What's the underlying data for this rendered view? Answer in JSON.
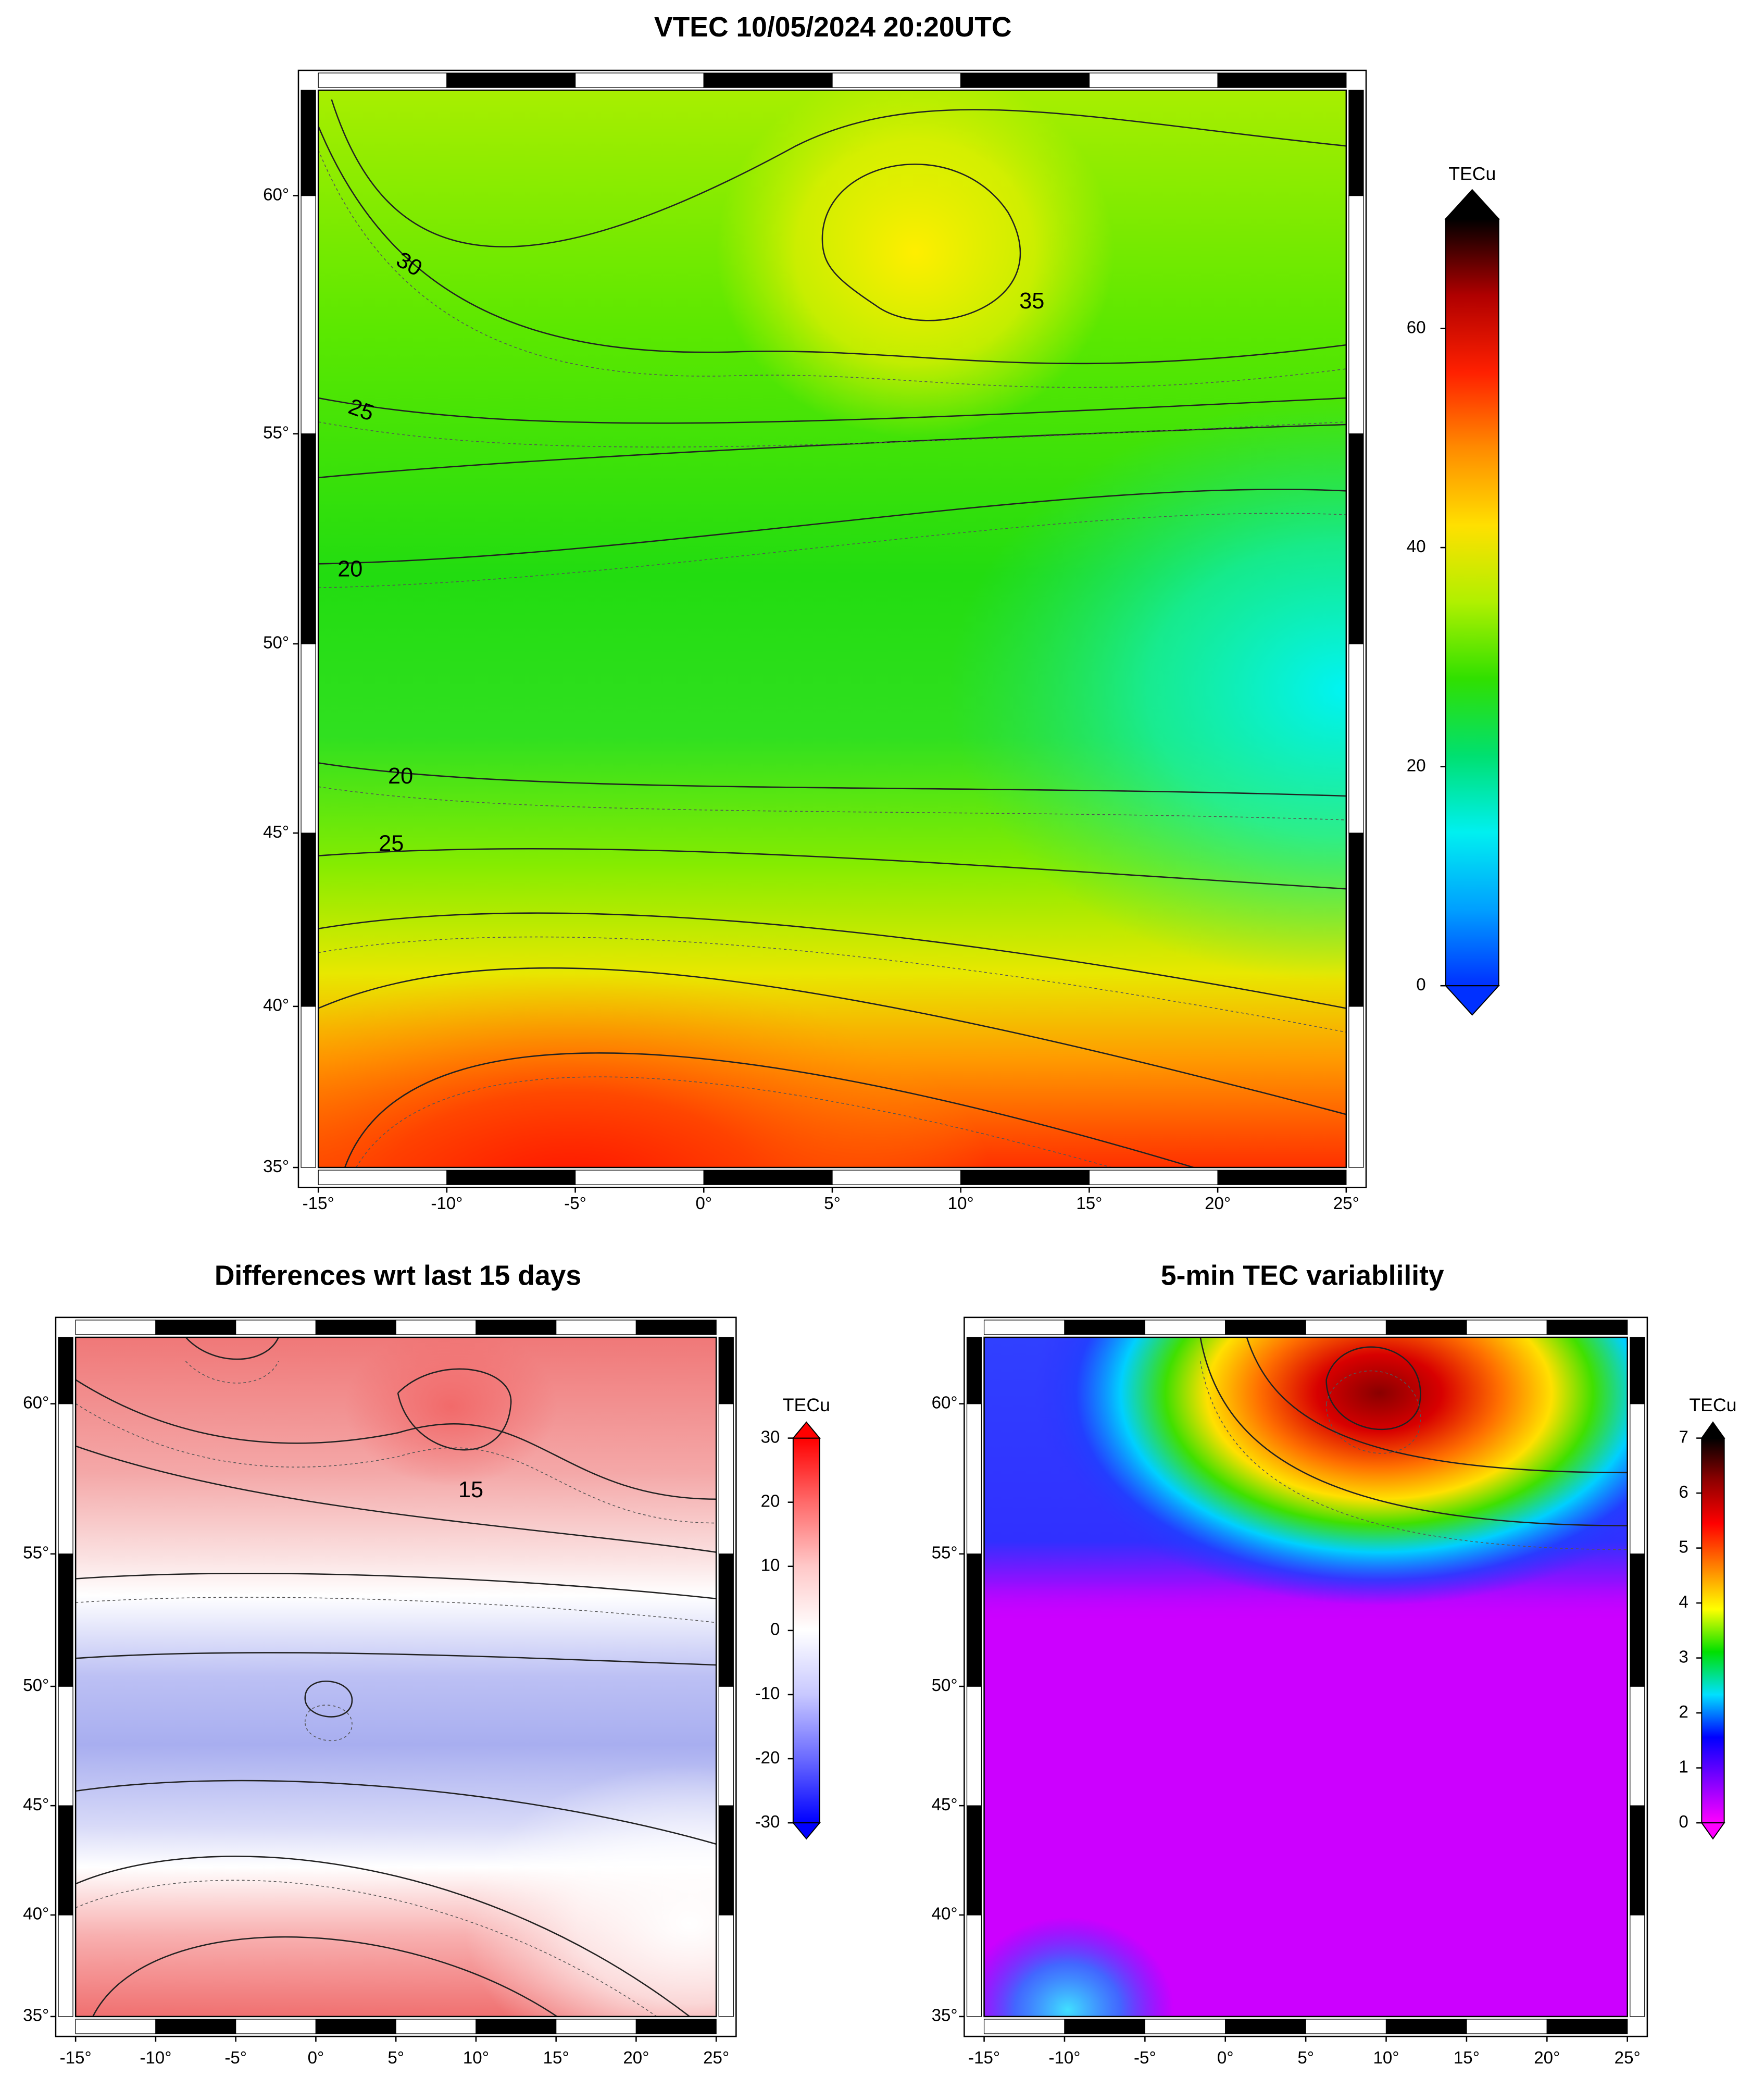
{
  "panels": [
    {
      "title": "VTEC 10/05/2024 20:20UTC",
      "lonlim": [
        -15,
        25
      ],
      "latlim": [
        35,
        62
      ],
      "lonticks": [
        {
          "value": -15,
          "label": "-15°"
        },
        {
          "value": -10,
          "label": "-10°"
        },
        {
          "value": -5,
          "label": "-5°"
        },
        {
          "value": 0,
          "label": "0°"
        },
        {
          "value": 5,
          "label": "5°"
        },
        {
          "value": 10,
          "label": "10°"
        },
        {
          "value": 15,
          "label": "15°"
        },
        {
          "value": 20,
          "label": "20°"
        },
        {
          "value": 25,
          "label": "25°"
        }
      ],
      "latticks": [
        {
          "value": 35,
          "label": "35°"
        },
        {
          "value": 40,
          "label": "40°"
        },
        {
          "value": 45,
          "label": "45°"
        },
        {
          "value": 50,
          "label": "50°"
        },
        {
          "value": 55,
          "label": "55°"
        },
        {
          "value": 60,
          "label": "60°"
        }
      ],
      "colorbar": {
        "label": "TECu",
        "range": [
          0,
          70
        ],
        "ticks": [
          0,
          20,
          40,
          60
        ],
        "colors": [
          "#0030ff",
          "#00a0ff",
          "#00f0f0",
          "#00e070",
          "#30e000",
          "#b0f000",
          "#ffe000",
          "#ff8c00",
          "#ff2000",
          "#b00000",
          "#000000"
        ]
      },
      "contour_labels": [
        "30",
        "35",
        "25",
        "20",
        "20",
        "25"
      ]
    },
    {
      "title": "Differences wrt last 15 days",
      "lonlim": [
        -15,
        25
      ],
      "latlim": [
        35,
        62
      ],
      "lonticks": [
        {
          "value": -15,
          "label": "-15°"
        },
        {
          "value": -10,
          "label": "-10°"
        },
        {
          "value": -5,
          "label": "-5°"
        },
        {
          "value": 0,
          "label": "0°"
        },
        {
          "value": 5,
          "label": "5°"
        },
        {
          "value": 10,
          "label": "10°"
        },
        {
          "value": 15,
          "label": "15°"
        },
        {
          "value": 20,
          "label": "20°"
        },
        {
          "value": 25,
          "label": "25°"
        }
      ],
      "latticks": [
        {
          "value": 35,
          "label": "35°"
        },
        {
          "value": 40,
          "label": "40°"
        },
        {
          "value": 45,
          "label": "45°"
        },
        {
          "value": 50,
          "label": "50°"
        },
        {
          "value": 55,
          "label": "55°"
        },
        {
          "value": 60,
          "label": "60°"
        }
      ],
      "colorbar": {
        "label": "TECu",
        "range": [
          -30,
          30
        ],
        "ticks": [
          -30,
          -20,
          -10,
          0,
          10,
          20,
          30
        ],
        "colors": [
          "#0000ff",
          "#6a6aff",
          "#c8c8ff",
          "#ffffff",
          "#ffc8c8",
          "#ff6a6a",
          "#ff0000"
        ]
      },
      "contour_labels": [
        "15"
      ]
    },
    {
      "title": "5-min TEC variablility",
      "lonlim": [
        -15,
        25
      ],
      "latlim": [
        35,
        62
      ],
      "lonticks": [
        {
          "value": -15,
          "label": "-15°"
        },
        {
          "value": -10,
          "label": "-10°"
        },
        {
          "value": -5,
          "label": "-5°"
        },
        {
          "value": 0,
          "label": "0°"
        },
        {
          "value": 5,
          "label": "5°"
        },
        {
          "value": 10,
          "label": "10°"
        },
        {
          "value": 15,
          "label": "15°"
        },
        {
          "value": 20,
          "label": "20°"
        },
        {
          "value": 25,
          "label": "25°"
        }
      ],
      "latticks": [
        {
          "value": 35,
          "label": "35°"
        },
        {
          "value": 40,
          "label": "40°"
        },
        {
          "value": 45,
          "label": "45°"
        },
        {
          "value": 50,
          "label": "50°"
        },
        {
          "value": 55,
          "label": "55°"
        },
        {
          "value": 60,
          "label": "60°"
        }
      ],
      "colorbar": {
        "label": "TECu",
        "range": [
          0,
          7
        ],
        "ticks": [
          0,
          1,
          2,
          3,
          4,
          5,
          6,
          7
        ],
        "colors": [
          "#ff00ff",
          "#8000ff",
          "#0000ff",
          "#00e0ff",
          "#00e000",
          "#ffff00",
          "#ff8000",
          "#ff0000",
          "#900000",
          "#000000"
        ]
      },
      "contour_labels": []
    }
  ]
}
